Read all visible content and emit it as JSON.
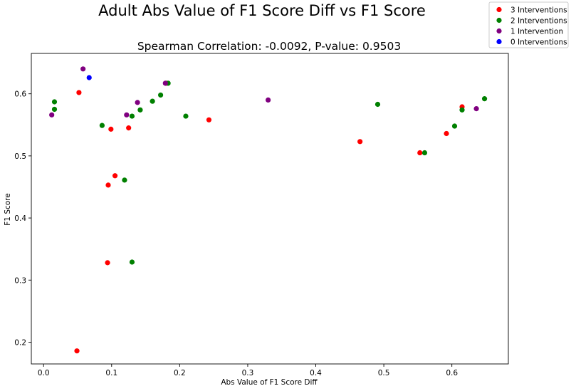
{
  "chart_data": {
    "type": "scatter",
    "suptitle": "Adult Abs Value of F1 Score Diff vs F1 Score",
    "title": "Spearman Correlation: -0.0092, P-value: 0.9503",
    "xlabel": "Abs Value of F1 Score Diff",
    "ylabel": "F1 Score",
    "xlim": [
      -0.018,
      0.683
    ],
    "ylim": [
      0.165,
      0.665
    ],
    "xticks": [
      0.0,
      0.1,
      0.2,
      0.3,
      0.4,
      0.5,
      0.6
    ],
    "xtick_labels": [
      "0.0",
      "0.1",
      "0.2",
      "0.3",
      "0.4",
      "0.5",
      "0.6"
    ],
    "yticks": [
      0.2,
      0.3,
      0.4,
      0.5,
      0.6
    ],
    "ytick_labels": [
      "0.2",
      "0.3",
      "0.4",
      "0.5",
      "0.6"
    ],
    "grid": false,
    "legend_placement": "figure top-right",
    "series": [
      {
        "name": "3 Interventions",
        "color": "#ff0000",
        "points": [
          [
            0.052,
            0.602
          ],
          [
            0.099,
            0.543
          ],
          [
            0.125,
            0.545
          ],
          [
            0.243,
            0.558
          ],
          [
            0.105,
            0.468
          ],
          [
            0.095,
            0.453
          ],
          [
            0.094,
            0.328
          ],
          [
            0.049,
            0.186
          ],
          [
            0.465,
            0.523
          ],
          [
            0.553,
            0.505
          ],
          [
            0.592,
            0.536
          ],
          [
            0.615,
            0.579
          ],
          [
            0.18,
            0.617
          ]
        ]
      },
      {
        "name": "2 Interventions",
        "color": "#008000",
        "points": [
          [
            0.016,
            0.587
          ],
          [
            0.016,
            0.575
          ],
          [
            0.086,
            0.549
          ],
          [
            0.13,
            0.564
          ],
          [
            0.142,
            0.574
          ],
          [
            0.16,
            0.588
          ],
          [
            0.172,
            0.598
          ],
          [
            0.183,
            0.617
          ],
          [
            0.209,
            0.564
          ],
          [
            0.119,
            0.461
          ],
          [
            0.13,
            0.329
          ],
          [
            0.491,
            0.583
          ],
          [
            0.56,
            0.505
          ],
          [
            0.604,
            0.548
          ],
          [
            0.615,
            0.574
          ],
          [
            0.648,
            0.592
          ]
        ]
      },
      {
        "name": "1 Intervention",
        "color": "#800080",
        "points": [
          [
            0.012,
            0.566
          ],
          [
            0.058,
            0.64
          ],
          [
            0.122,
            0.566
          ],
          [
            0.138,
            0.586
          ],
          [
            0.179,
            0.617
          ],
          [
            0.33,
            0.59
          ],
          [
            0.636,
            0.576
          ]
        ]
      },
      {
        "name": "0 Interventions",
        "color": "#0000ff",
        "points": [
          [
            0.067,
            0.626
          ]
        ]
      }
    ]
  }
}
